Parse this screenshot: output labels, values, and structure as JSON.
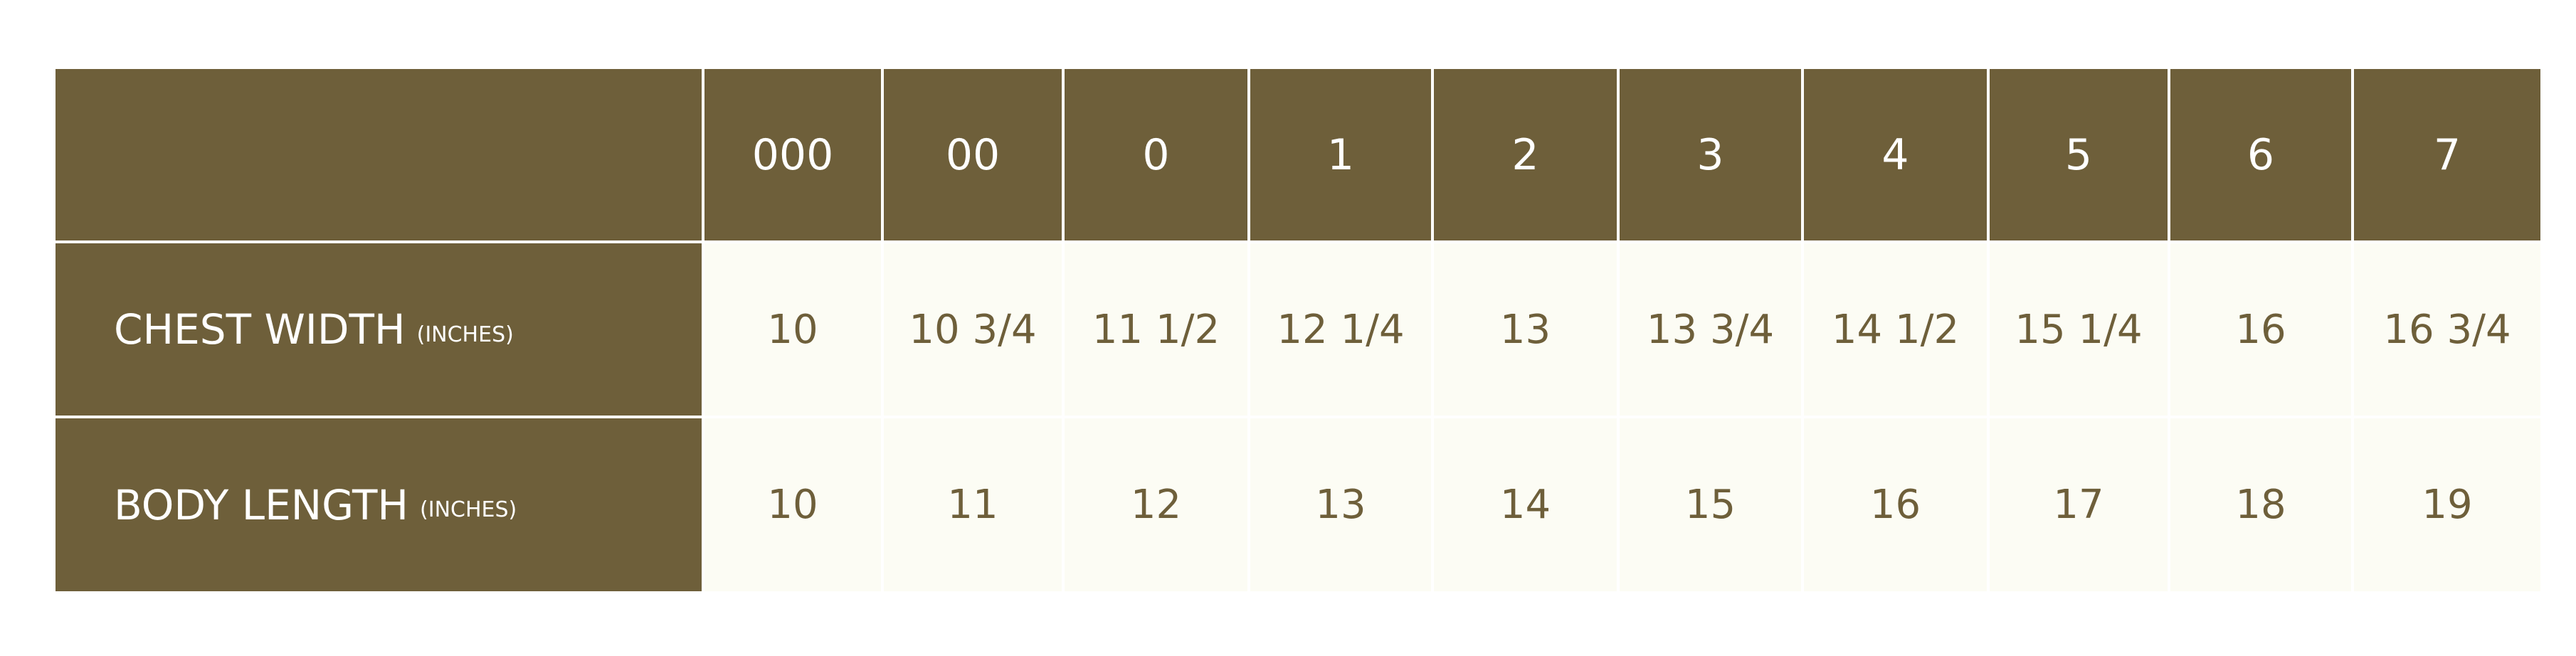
{
  "table": {
    "columns": [
      "000",
      "00",
      "0",
      "1",
      "2",
      "3",
      "4",
      "5",
      "6",
      "7"
    ],
    "rows": [
      {
        "label": "CHEST WIDTH",
        "unit": "(INCHES)",
        "values": [
          "10",
          "10 3/4",
          "11 1/2",
          "12 1/4",
          "13",
          "13 3/4",
          "14 1/2",
          "15 1/4",
          "16",
          "16 3/4"
        ]
      },
      {
        "label": "BODY LENGTH",
        "unit": "(INCHES)",
        "values": [
          "10",
          "11",
          "12",
          "13",
          "14",
          "15",
          "16",
          "17",
          "18",
          "19"
        ]
      }
    ]
  }
}
